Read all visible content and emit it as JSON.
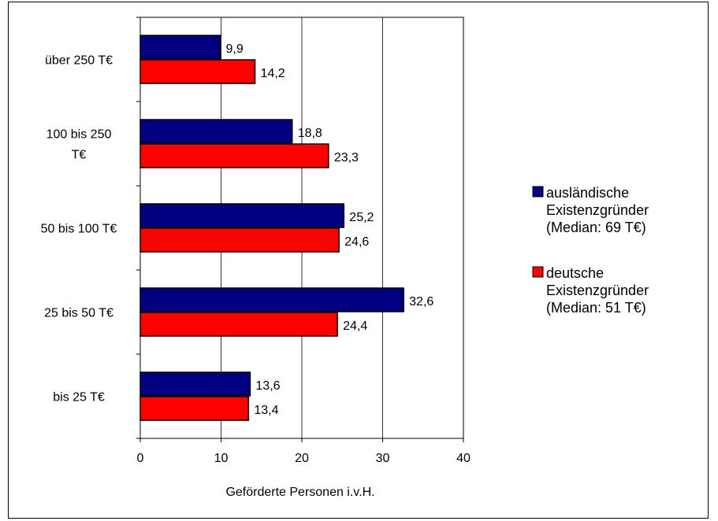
{
  "chart_data": {
    "type": "bar",
    "orientation": "horizontal",
    "categories": [
      "über 250 T€",
      "100 bis 250 T€",
      "50 bis 100 T€",
      "25 bis 50 T€",
      "bis 25 T€"
    ],
    "category_lines": [
      [
        "über 250 T€"
      ],
      [
        "100 bis 250",
        "T€"
      ],
      [
        "50 bis 100 T€"
      ],
      [
        "25 bis 50 T€"
      ],
      [
        "bis 25 T€"
      ]
    ],
    "series": [
      {
        "name": "ausländische Existenzgründer (Median: 69 T€)",
        "legend_lines": [
          "ausländische",
          "Existenzgründer",
          "(Median: 69 T€)"
        ],
        "color": "#000080",
        "values": [
          9.9,
          18.8,
          25.2,
          32.6,
          13.6
        ],
        "labels": [
          "9,9",
          "18,8",
          "25,2",
          "32,6",
          "13,6"
        ]
      },
      {
        "name": "deutsche Existenzgründer (Median: 51 T€)",
        "legend_lines": [
          "deutsche",
          "Existenzgründer",
          "(Median: 51 T€)"
        ],
        "color": "#ff0000",
        "values": [
          14.2,
          23.3,
          24.6,
          24.4,
          13.4
        ],
        "labels": [
          "14,2",
          "23,3",
          "24,6",
          "24,4",
          "13,4"
        ]
      }
    ],
    "xlabel": "Geförderte Personen i.v.H.",
    "xlim": [
      0,
      40
    ],
    "xticks": [
      0,
      10,
      20,
      30,
      40
    ],
    "grid": true,
    "legend_position": "right"
  }
}
